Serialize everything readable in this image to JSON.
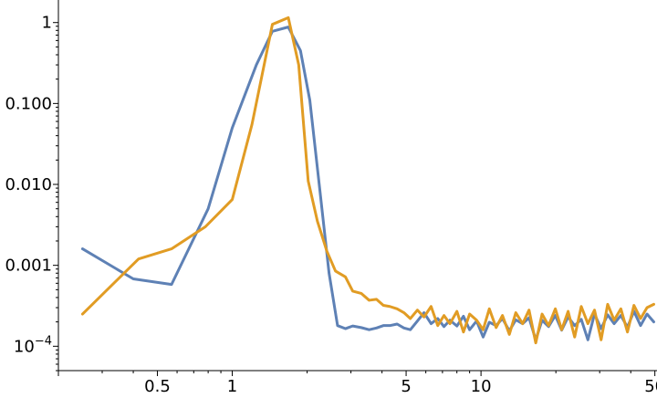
{
  "chart_data": {
    "type": "line",
    "title": "",
    "xlabel": "",
    "ylabel": "",
    "x_scale": "log",
    "y_scale": "log",
    "xlim": [
      0.2,
      51
    ],
    "ylim": [
      5e-05,
      1.9
    ],
    "grid": false,
    "legend": "none",
    "x_ticks": [
      {
        "value": 0.5,
        "label": "0.5"
      },
      {
        "value": 1,
        "label": "1"
      },
      {
        "value": 5,
        "label": "5"
      },
      {
        "value": 10,
        "label": "10"
      },
      {
        "value": 50,
        "label": "50"
      }
    ],
    "x_minor_ticks": [
      0.2,
      0.3,
      0.4,
      0.6,
      0.7,
      0.8,
      0.9,
      2,
      3,
      4,
      6,
      7,
      8,
      9,
      20,
      30,
      40
    ],
    "y_ticks": [
      {
        "value": 1,
        "label": "1"
      },
      {
        "value": 0.1,
        "label": "0.100"
      },
      {
        "value": 0.01,
        "label": "0.010"
      },
      {
        "value": 0.001,
        "label": "0.001"
      },
      {
        "value": 0.0001,
        "label": "10",
        "exponent": "−4"
      }
    ],
    "series": [
      {
        "color": "#5e81b5",
        "x": [
          0.25,
          0.4,
          0.57,
          0.8,
          1.0,
          1.25,
          1.45,
          1.68,
          1.88,
          2.05,
          2.25,
          2.45,
          2.65,
          2.85,
          3.05,
          3.3,
          3.55,
          3.8,
          4.05,
          4.3,
          4.6,
          4.9,
          5.2,
          5.55,
          5.9,
          6.3,
          6.7,
          7.1,
          7.5,
          8.0,
          8.5,
          9.0,
          9.6,
          10.2,
          10.8,
          11.5,
          12.2,
          13.0,
          13.8,
          14.7,
          15.6,
          16.6,
          17.6,
          18.7,
          19.9,
          21.1,
          22.4,
          23.8,
          25.3,
          26.9,
          28.6,
          30.4,
          32.3,
          34.3,
          36.5,
          38.8,
          41.2,
          43.8,
          46.5,
          49.5
        ],
        "y": [
          0.0016,
          0.00068,
          0.00058,
          0.005,
          0.05,
          0.3,
          0.78,
          0.88,
          0.45,
          0.11,
          0.0085,
          0.0008,
          0.00018,
          0.000165,
          0.000178,
          0.00017,
          0.00016,
          0.000168,
          0.00018,
          0.00018,
          0.000188,
          0.000168,
          0.00016,
          0.000205,
          0.00026,
          0.00019,
          0.00022,
          0.000175,
          0.00021,
          0.000178,
          0.000235,
          0.00016,
          0.000205,
          0.00013,
          0.000198,
          0.00018,
          0.00022,
          0.000155,
          0.000212,
          0.00019,
          0.000225,
          0.00012,
          0.00021,
          0.000175,
          0.00024,
          0.000158,
          0.00023,
          0.00018,
          0.000215,
          0.00012,
          0.00025,
          0.000165,
          0.000245,
          0.00019,
          0.00024,
          0.000172,
          0.00027,
          0.00018,
          0.00025,
          0.0002
        ]
      },
      {
        "color": "#e19c24",
        "x": [
          0.25,
          0.42,
          0.57,
          0.78,
          1.0,
          1.2,
          1.45,
          1.68,
          1.85,
          2.02,
          2.2,
          2.4,
          2.6,
          2.85,
          3.05,
          3.3,
          3.55,
          3.8,
          4.05,
          4.3,
          4.6,
          4.9,
          5.2,
          5.55,
          5.9,
          6.3,
          6.7,
          7.1,
          7.5,
          8.0,
          8.5,
          9.0,
          9.6,
          10.2,
          10.8,
          11.5,
          12.2,
          13.0,
          13.8,
          14.7,
          15.6,
          16.6,
          17.6,
          18.7,
          19.9,
          21.1,
          22.4,
          23.8,
          25.3,
          26.9,
          28.6,
          30.4,
          32.3,
          34.3,
          36.5,
          38.8,
          41.2,
          43.8,
          46.5,
          49.5
        ],
        "y": [
          0.00025,
          0.0012,
          0.0016,
          0.003,
          0.0065,
          0.055,
          0.95,
          1.15,
          0.3,
          0.011,
          0.0035,
          0.0015,
          0.00085,
          0.00072,
          0.00048,
          0.00045,
          0.00037,
          0.00038,
          0.00032,
          0.00031,
          0.00029,
          0.00026,
          0.00022,
          0.00028,
          0.00023,
          0.00031,
          0.00018,
          0.00024,
          0.00019,
          0.00027,
          0.00015,
          0.00025,
          0.00021,
          0.00016,
          0.00029,
          0.00017,
          0.00024,
          0.00014,
          0.00026,
          0.00019,
          0.00028,
          0.00011,
          0.00025,
          0.00018,
          0.00029,
          0.00016,
          0.00027,
          0.00013,
          0.00031,
          0.00019,
          0.00028,
          0.00012,
          0.00033,
          0.00021,
          0.00029,
          0.00015,
          0.00032,
          0.00022,
          0.0003,
          0.00033
        ]
      }
    ]
  }
}
